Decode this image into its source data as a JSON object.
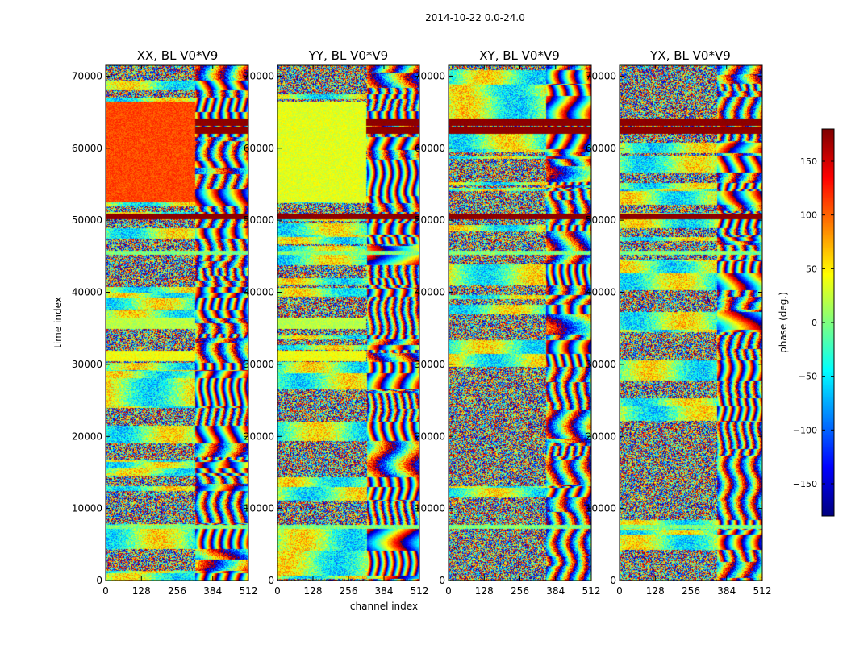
{
  "suptitle": "2014-10-22 0.0-24.0",
  "chart_data": {
    "type": "heatmap",
    "panels": [
      {
        "title": "XX, BL V0*V9",
        "seed": 11,
        "fringe_channel": 320,
        "hot_polarization": "XX"
      },
      {
        "title": "YY, BL V0*V9",
        "seed": 23,
        "fringe_channel": 320,
        "hot_polarization": "YY"
      },
      {
        "title": "XY, BL V0*V9",
        "seed": 37,
        "fringe_channel": 350,
        "hot_polarization": "none"
      },
      {
        "title": "YX, BL V0*V9",
        "seed": 53,
        "fringe_channel": 350,
        "hot_polarization": "none"
      }
    ],
    "xlabel": "channel index",
    "ylabel": "time index",
    "xlim": [
      0,
      512
    ],
    "ylim": [
      0,
      71500
    ],
    "xticks": [
      0,
      128,
      256,
      384,
      512
    ],
    "yticks": [
      0,
      10000,
      20000,
      30000,
      40000,
      50000,
      60000,
      70000
    ],
    "colorbar": {
      "label": "phase (deg.)",
      "range": [
        -180,
        180
      ],
      "ticks": [
        -150,
        -100,
        -50,
        0,
        50,
        100,
        150
      ],
      "colormap": "jet"
    },
    "bands": [
      {
        "from": 62100,
        "to": 63000,
        "value": 180,
        "polarizations": "all",
        "note": "saturated dark-red band"
      },
      {
        "from": 63200,
        "to": 64200,
        "value": 180,
        "polarizations": "all",
        "note": "saturated dark-red band"
      },
      {
        "from": 50200,
        "to": 51000,
        "value": 180,
        "polarizations": "all",
        "note": "saturated dark-red band"
      },
      {
        "from": 52500,
        "to": 66500,
        "value_XX": 110,
        "value_YY": 35,
        "polarizations": "parallel",
        "note": "smooth phase region, channels 0-320"
      },
      {
        "from": 30500,
        "to": 32000,
        "value_XX": 40,
        "value_YY": 40,
        "polarizations": "parallel",
        "note": "smooth phase region, channels 0-320"
      },
      {
        "from": 35000,
        "to": 36500,
        "value_XX": 20,
        "value_YY": 20,
        "polarizations": "parallel",
        "note": "smooth phase region"
      },
      {
        "from": 7200,
        "to": 7800,
        "value": 0,
        "polarizations": "all",
        "note": "flat near-zero stripe"
      },
      {
        "from": 45300,
        "to": 45800,
        "value": 0,
        "polarizations": "all",
        "note": "flat near-zero stripe"
      }
    ]
  }
}
